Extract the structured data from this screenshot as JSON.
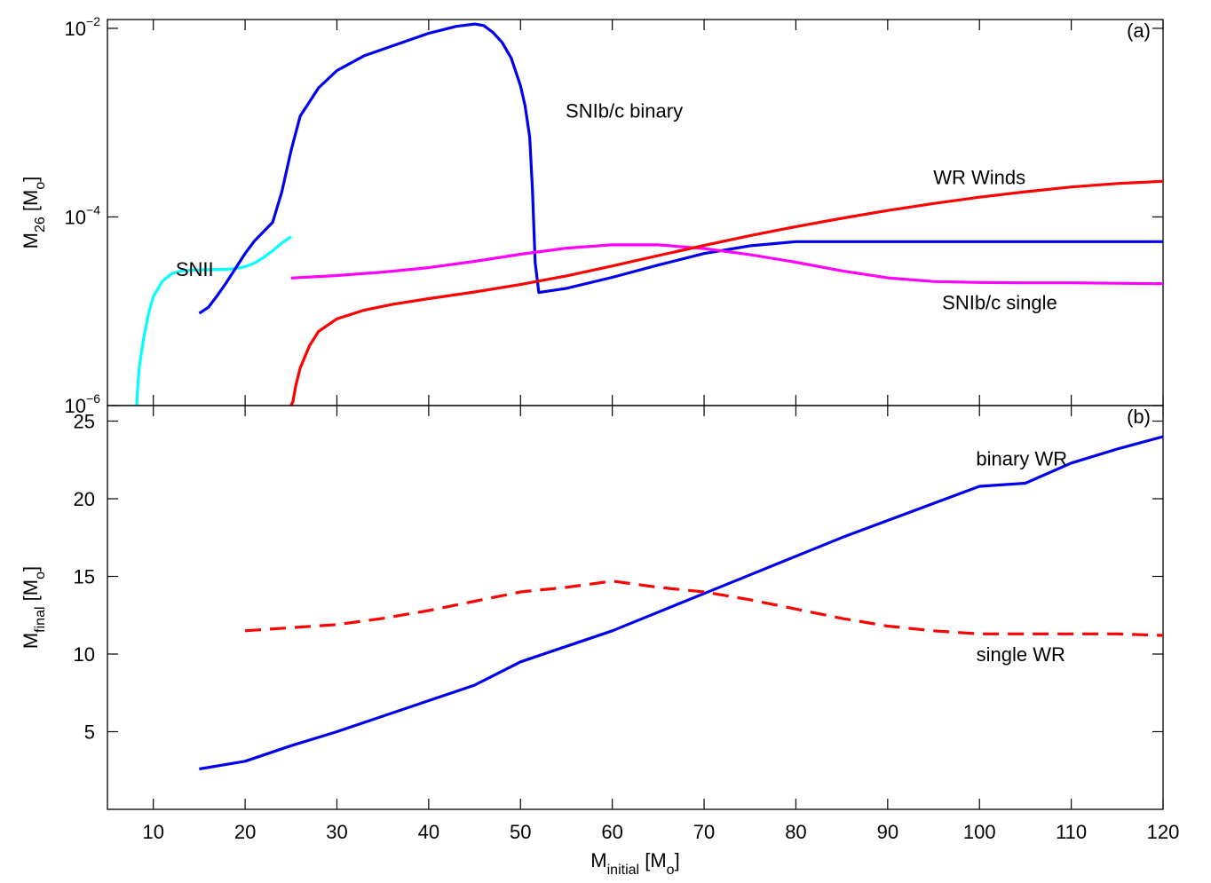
{
  "chart_data": [
    {
      "panel": "a",
      "panel_label": "(a)",
      "type": "line",
      "ylabel_main": "M",
      "ylabel_sub": "26",
      "ylabel_unit_open": "  [M",
      "ylabel_unit_sub": "o",
      "ylabel_unit_close": "]",
      "yscale": "log",
      "ylim": [
        1e-06,
        0.0124
      ],
      "xlim": [
        5,
        120
      ],
      "yticks": [
        {
          "base": "10",
          "exp": "−6",
          "value": 1e-06
        },
        {
          "base": "10",
          "exp": "−4",
          "value": 0.0001
        },
        {
          "base": "10",
          "exp": "−2",
          "value": 0.01
        }
      ],
      "series": [
        {
          "name": "SNII",
          "color": "#00ffff",
          "x": [
            8.2,
            8.3,
            8.5,
            9,
            9.5,
            10,
            11,
            12,
            13,
            14,
            15,
            16,
            17,
            18,
            19,
            20,
            21,
            22,
            23,
            24,
            25
          ],
          "y": [
            1e-06,
            1.6e-06,
            2.7e-06,
            5.6e-06,
            9.6e-06,
            1.43e-05,
            2.09e-05,
            2.5e-05,
            2.67e-05,
            2.72e-05,
            2.74e-05,
            2.76e-05,
            2.77e-05,
            2.79e-05,
            2.84e-05,
            2.97e-05,
            3.23e-05,
            3.71e-05,
            4.38e-05,
            5.28e-05,
            6.18e-05
          ]
        },
        {
          "name": "SNIb/c binary",
          "color": "#0000ee",
          "x": [
            15,
            16,
            17,
            18,
            19,
            20,
            21,
            22,
            23,
            24,
            25,
            26,
            28,
            30,
            33,
            36,
            40,
            43,
            45,
            46,
            47,
            48,
            49,
            50,
            50.5,
            51,
            51.3,
            51.6,
            52,
            55,
            60,
            65,
            70,
            75,
            80,
            85,
            90,
            100,
            110,
            120
          ],
          "y": [
            9.5e-06,
            1.1e-05,
            1.48e-05,
            2.04e-05,
            2.89e-05,
            4.1e-05,
            5.53e-05,
            6.98e-05,
            8.78e-05,
            0.000184,
            0.000504,
            0.00117,
            0.00234,
            0.00357,
            0.00513,
            0.00649,
            0.00886,
            0.0105,
            0.0111,
            0.0107,
            0.00906,
            0.00709,
            0.00481,
            0.00245,
            0.00151,
            0.000709,
            0.000197,
            3.26e-05,
            1.58e-05,
            1.75e-05,
            2.29e-05,
            3.09e-05,
            4.09e-05,
            4.94e-05,
            5.47e-05,
            5.47e-05,
            5.47e-05,
            5.47e-05,
            5.47e-05,
            5.47e-05
          ]
        },
        {
          "name": "SNIb/c single",
          "color": "#ff00ff",
          "x": [
            25,
            30,
            35,
            40,
            45,
            50,
            55,
            60,
            65,
            70,
            75,
            80,
            85,
            90,
            95,
            100,
            105,
            110,
            115,
            120
          ],
          "y": [
            2.25e-05,
            2.39e-05,
            2.6e-05,
            2.9e-05,
            3.38e-05,
            4.02e-05,
            4.67e-05,
            5.06e-05,
            5.06e-05,
            4.62e-05,
            3.99e-05,
            3.31e-05,
            2.68e-05,
            2.26e-05,
            2.07e-05,
            2.02e-05,
            2e-05,
            2e-05,
            1.98e-05,
            1.96e-05
          ]
        },
        {
          "name": "WR Winds",
          "color": "#ff0000",
          "x": [
            25,
            25.2,
            25.5,
            26,
            27,
            28,
            30,
            33,
            36,
            40,
            45,
            50,
            55,
            60,
            65,
            70,
            75,
            80,
            85,
            90,
            95,
            100,
            105,
            110,
            115,
            120
          ],
          "y": [
            1e-06,
            1.1e-06,
            1.6e-06,
            2.5e-06,
            4.3e-06,
            6.1e-06,
            8.3e-06,
            1.03e-05,
            1.18e-05,
            1.36e-05,
            1.6e-05,
            1.92e-05,
            2.37e-05,
            3.02e-05,
            3.89e-05,
            4.98e-05,
            6.32e-05,
            7.89e-05,
            9.68e-05,
            0.000117,
            0.000139,
            0.000162,
            0.000185,
            0.000208,
            0.000226,
            0.000239
          ]
        }
      ],
      "annotations": [
        {
          "text": "SNII",
          "x": 14.5,
          "y": 2.8e-05
        },
        {
          "text": "SNIb/c binary",
          "x": 61.3,
          "y": 0.00135
        },
        {
          "text": "WR Winds",
          "x": 100,
          "y": 0.000266
        },
        {
          "text": "SNIb/c single",
          "x": 102.2,
          "y": 1.25e-05
        }
      ]
    },
    {
      "panel": "b",
      "panel_label": "(b)",
      "type": "line",
      "ylabel_main": "M",
      "ylabel_sub": "final",
      "ylabel_unit_open": "  [M",
      "ylabel_unit_sub": "o",
      "ylabel_unit_close": "]",
      "xlabel_main": "M",
      "xlabel_sub": "initial",
      "xlabel_unit_open": " [M",
      "xlabel_unit_sub": "o",
      "xlabel_unit_close": "]",
      "xlim": [
        5,
        120
      ],
      "ylim": [
        0,
        26
      ],
      "xticks": [
        "10",
        "20",
        "30",
        "40",
        "50",
        "60",
        "70",
        "80",
        "90",
        "100",
        "110",
        "120"
      ],
      "yticks": [
        "5",
        "10",
        "15",
        "20",
        "25"
      ],
      "series": [
        {
          "name": "binary WR",
          "color": "#0000ee",
          "dash": "solid",
          "x": [
            15,
            20,
            25,
            30,
            35,
            40,
            45,
            50,
            55,
            60,
            65,
            70,
            75,
            80,
            85,
            90,
            95,
            100,
            105,
            110,
            115,
            120
          ],
          "y": [
            2.6,
            3.1,
            4.1,
            5.0,
            6.0,
            7.0,
            8.0,
            9.5,
            10.5,
            11.5,
            12.7,
            13.9,
            15.1,
            16.3,
            17.5,
            18.6,
            19.7,
            20.8,
            21.0,
            22.3,
            23.2,
            24.0
          ]
        },
        {
          "name": "single WR",
          "color": "#ff0000",
          "dash": "dashed",
          "x": [
            20,
            25,
            30,
            35,
            40,
            45,
            50,
            55,
            60,
            65,
            70,
            75,
            80,
            85,
            90,
            95,
            100,
            105,
            110,
            115,
            120
          ],
          "y": [
            11.5,
            11.7,
            11.9,
            12.3,
            12.8,
            13.4,
            14.0,
            14.3,
            14.7,
            14.3,
            14.0,
            13.5,
            12.9,
            12.3,
            11.8,
            11.5,
            11.3,
            11.3,
            11.3,
            11.3,
            11.2
          ]
        }
      ],
      "annotations": [
        {
          "text": "binary WR",
          "x": 104.6,
          "y": 22.6
        },
        {
          "text": "single WR",
          "x": 104.5,
          "y": 10.0
        }
      ]
    }
  ]
}
